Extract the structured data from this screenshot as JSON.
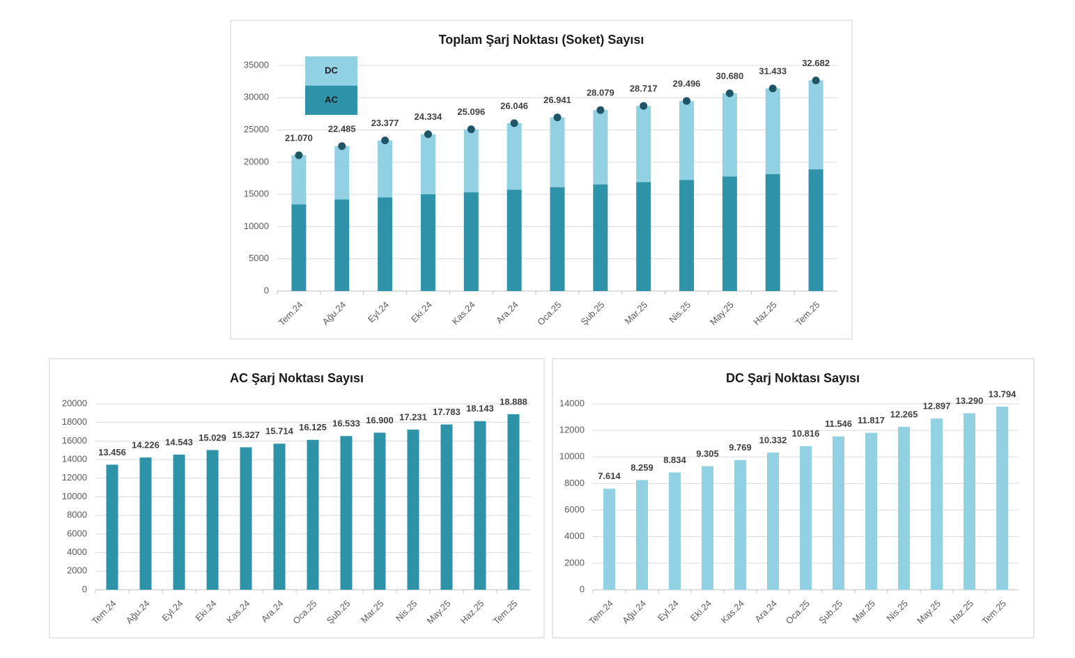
{
  "chart_data": [
    {
      "type": "stacked_bar",
      "title": "Toplam Şarj Noktası (Soket) Sayısı",
      "categories": [
        "Tem.24",
        "Ağu.24",
        "Eyl.24",
        "Eki.24",
        "Kas.24",
        "Ara.24",
        "Oca.25",
        "Şub.25",
        "Mar.25",
        "Nis.25",
        "May.25",
        "Haz.25",
        "Tem.25"
      ],
      "series": [
        {
          "name": "AC",
          "color": "#2e93a8",
          "values": [
            13456,
            14226,
            14543,
            15029,
            15327,
            15714,
            16125,
            16533,
            16900,
            17231,
            17783,
            18143,
            18888
          ]
        },
        {
          "name": "DC",
          "color": "#92d0e3",
          "values": [
            7614,
            8259,
            8834,
            9305,
            9769,
            10332,
            10816,
            11546,
            11817,
            12265,
            12897,
            13290,
            13794
          ]
        }
      ],
      "totals": {
        "color": "#1f5566",
        "values": [
          21070,
          22485,
          23377,
          24334,
          25096,
          26046,
          26941,
          28079,
          28717,
          29496,
          30680,
          31433,
          32682
        ],
        "value_labels": [
          "21.070",
          "22.485",
          "23.377",
          "24.334",
          "25.096",
          "26.046",
          "26.941",
          "28.079",
          "28.717",
          "29.496",
          "30.680",
          "31.433",
          "32.682"
        ]
      },
      "ylim": [
        0,
        35000
      ],
      "yticks": [
        0,
        5000,
        10000,
        15000,
        20000,
        25000,
        30000,
        35000
      ],
      "grid": true
    },
    {
      "type": "bar",
      "title": "AC Şarj Noktası Sayısı",
      "color": "#2e93a8",
      "categories": [
        "Tem.24",
        "Ağu.24",
        "Eyl.24",
        "Eki.24",
        "Kas.24",
        "Ara.24",
        "Oca.25",
        "Şub.25",
        "Mar.25",
        "Nis.25",
        "May.25",
        "Haz.25",
        "Tem.25"
      ],
      "values": [
        13456,
        14226,
        14543,
        15029,
        15327,
        15714,
        16125,
        16533,
        16900,
        17231,
        17783,
        18143,
        18888
      ],
      "value_labels": [
        "13.456",
        "14.226",
        "14.543",
        "15.029",
        "15.327",
        "15.714",
        "16.125",
        "16.533",
        "16.900",
        "17.231",
        "17.783",
        "18.143",
        "18.888"
      ],
      "ylim": [
        0,
        20000
      ],
      "yticks": [
        0,
        2000,
        4000,
        6000,
        8000,
        10000,
        12000,
        14000,
        16000,
        18000,
        20000
      ],
      "grid": true
    },
    {
      "type": "bar",
      "title": "DC Şarj Noktası Sayısı",
      "color": "#92d0e3",
      "categories": [
        "Tem.24",
        "Ağu.24",
        "Eyl.24",
        "Eki.24",
        "Kas.24",
        "Ara.24",
        "Oca.25",
        "Şub.25",
        "Mar.25",
        "Nis.25",
        "May.25",
        "Haz.25",
        "Tem.25"
      ],
      "values": [
        7614,
        8259,
        8834,
        9305,
        9769,
        10332,
        10816,
        11546,
        11817,
        12265,
        12897,
        13290,
        13794
      ],
      "value_labels": [
        "7.614",
        "8.259",
        "8.834",
        "9.305",
        "9.769",
        "10.332",
        "10.816",
        "11.546",
        "11.817",
        "12.265",
        "12.897",
        "13.290",
        "13.794"
      ],
      "ylim": [
        0,
        14000
      ],
      "yticks": [
        0,
        2000,
        4000,
        6000,
        8000,
        10000,
        12000,
        14000
      ],
      "grid": true
    }
  ]
}
